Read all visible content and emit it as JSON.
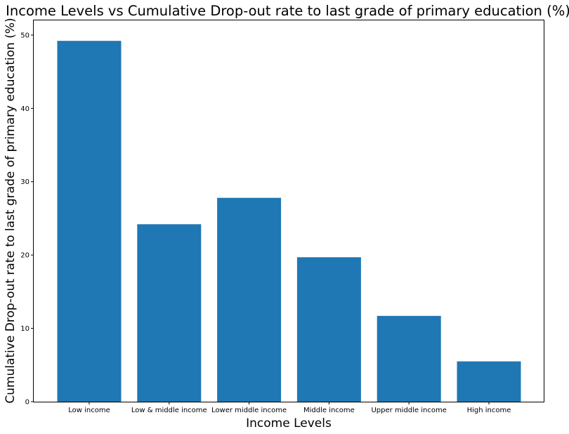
{
  "chart_data": {
    "type": "bar",
    "title": "Income Levels vs Cumulative Drop-out rate to last grade of primary education (%)",
    "xlabel": "Income Levels",
    "ylabel": "Cumulative Drop-out rate to last grade of primary education (%)",
    "categories": [
      "Low income",
      "Low & middle income",
      "Lower middle income",
      "Middle income",
      "Upper middle income",
      "High income"
    ],
    "values": [
      49.2,
      24.2,
      27.8,
      19.7,
      11.7,
      5.5
    ],
    "ylim": [
      0,
      52
    ],
    "yticks": [
      0,
      10,
      20,
      30,
      40,
      50
    ],
    "bar_color": "#1f77b4",
    "grid": false,
    "legend": "none"
  }
}
